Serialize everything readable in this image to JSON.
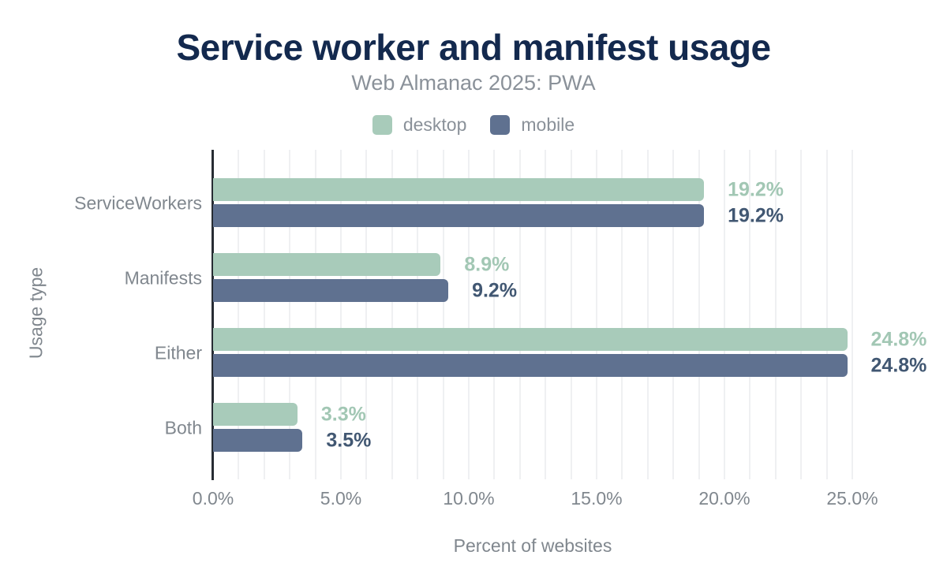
{
  "chart_data": {
    "type": "bar",
    "orientation": "horizontal",
    "title": "Service worker and manifest usage",
    "subtitle": "Web Almanac 2025: PWA",
    "categories": [
      "ServiceWorkers",
      "Manifests",
      "Either",
      "Both"
    ],
    "series": [
      {
        "name": "desktop",
        "color": "#a8cbba",
        "label_color": "#a2c7b4",
        "values": [
          19.2,
          8.9,
          24.8,
          3.3
        ],
        "labels": [
          "19.2%",
          "8.9%",
          "24.8%",
          "3.3%"
        ]
      },
      {
        "name": "mobile",
        "color": "#5f7190",
        "label_color": "#415772",
        "values": [
          19.2,
          9.2,
          24.8,
          3.5
        ],
        "labels": [
          "19.2%",
          "9.2%",
          "24.8%",
          "3.5%"
        ]
      }
    ],
    "xlabel": "Percent of websites",
    "ylabel": "Usage type",
    "xlim": [
      0,
      25
    ],
    "xticks": {
      "values": [
        0,
        5,
        10,
        15,
        20,
        25
      ],
      "labels": [
        "0.0%",
        "5.0%",
        "10.0%",
        "15.0%",
        "20.0%",
        "25.0%"
      ]
    },
    "grid": {
      "on": true,
      "minor_step_percent": 1
    },
    "legend_position": "top",
    "style": {
      "title_color": "#13294e",
      "muted_color": "#8a9199",
      "label_color": "#80878e",
      "axis_color": "#272c33",
      "grid_color": "#eff0f2",
      "background": "#ffffff"
    }
  }
}
